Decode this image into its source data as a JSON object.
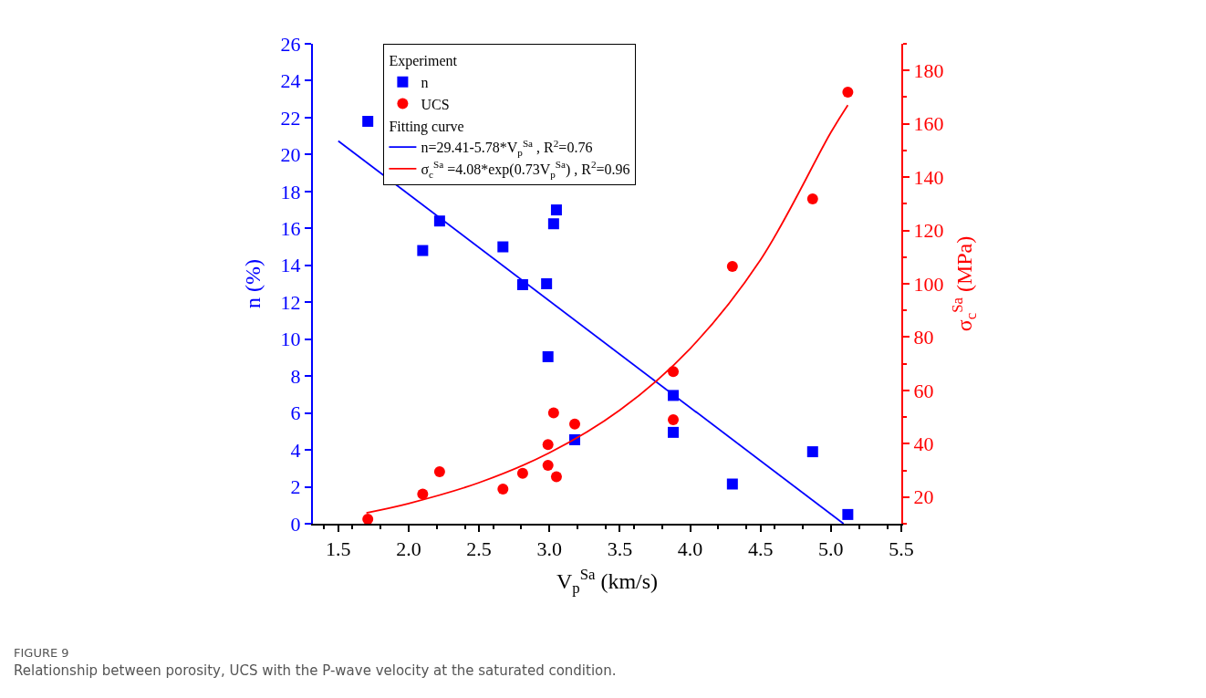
{
  "chart_data": {
    "type": "scatter",
    "xlabel": "V$_{p}$$^{Sa}$ (km/s)",
    "ylabel": "n (%)",
    "y2label": "σ$_{c}$$^{Sa}$ (MPa)",
    "xlim": [
      1.32,
      5.5
    ],
    "xticks": [
      1.5,
      {
        "value": 2,
        "label": "2.0"
      },
      2.5,
      {
        "value": 3,
        "label": "3.0"
      },
      3.5,
      {
        "value": 4,
        "label": "4.0"
      },
      4.5,
      {
        "value": 5,
        "label": "5.0"
      },
      5.5
    ],
    "ylim": [
      0,
      26
    ],
    "yticks": [
      0,
      2,
      4,
      6,
      8,
      10,
      12,
      14,
      16,
      18,
      20,
      22,
      24,
      26
    ],
    "y2lim": [
      10,
      190
    ],
    "y2ticks": [
      20,
      40,
      60,
      80,
      100,
      120,
      140,
      160,
      180
    ],
    "legend": "top",
    "annotations": [
      "Experiment",
      "Fitting curve",
      "FIGURE 9",
      "Relationship between porosity, UCS with the P-wave velocity at the saturated condition."
    ],
    "series": [
      {
        "name": "n",
        "marker": "square",
        "color": "#0000ff",
        "x": [
          1.71,
          2.1,
          2.22,
          2.67,
          2.81,
          2.98,
          2.99,
          3.03,
          3.05,
          3.18,
          3.88,
          3.88,
          4.3,
          4.87,
          5.12
        ],
        "values": [
          21.8,
          14.8,
          16.4,
          15.0,
          12.95,
          13.0,
          9.05,
          16.25,
          17.0,
          4.55,
          6.95,
          4.95,
          2.15,
          3.9,
          0.5
        ]
      },
      {
        "name": "UCS",
        "marker": "circle",
        "color": "#ff0000",
        "axis": "y2",
        "x": [
          1.71,
          2.1,
          2.22,
          2.67,
          2.81,
          2.99,
          2.99,
          3.03,
          3.05,
          3.18,
          3.88,
          3.88,
          4.3,
          4.87,
          5.12
        ],
        "values": [
          11.7,
          21.1,
          29.5,
          23.0,
          28.9,
          39.7,
          31.9,
          51.6,
          27.6,
          47.4,
          67.1,
          49.0,
          106.5,
          131.8,
          171.9
        ]
      },
      {
        "name": "n=29.41-5.78*V$_{p}$$^{Sa}$ , R$^{2}$=0.76",
        "type": "line",
        "line_style": "solid",
        "color": "#0000ff",
        "x": [
          1.5,
          5.09
        ],
        "values": [
          20.74,
          0
        ]
      },
      {
        "name": "σ$_{c}$$^{Sa}$ =4.08*exp(0.73V$_{p}$$^{Sa}$) , R$^{2}$=0.96",
        "type": "line",
        "line_style": "solid",
        "color": "#ff0000",
        "axis": "y2",
        "x": [
          1.7,
          2.0,
          2.5,
          3.0,
          3.5,
          4.0,
          4.5,
          5.0,
          5.12
        ],
        "values": [
          14.1,
          17.6,
          25.4,
          36.6,
          52.6,
          75.7,
          109.0,
          156.8,
          167.0
        ]
      }
    ]
  }
}
